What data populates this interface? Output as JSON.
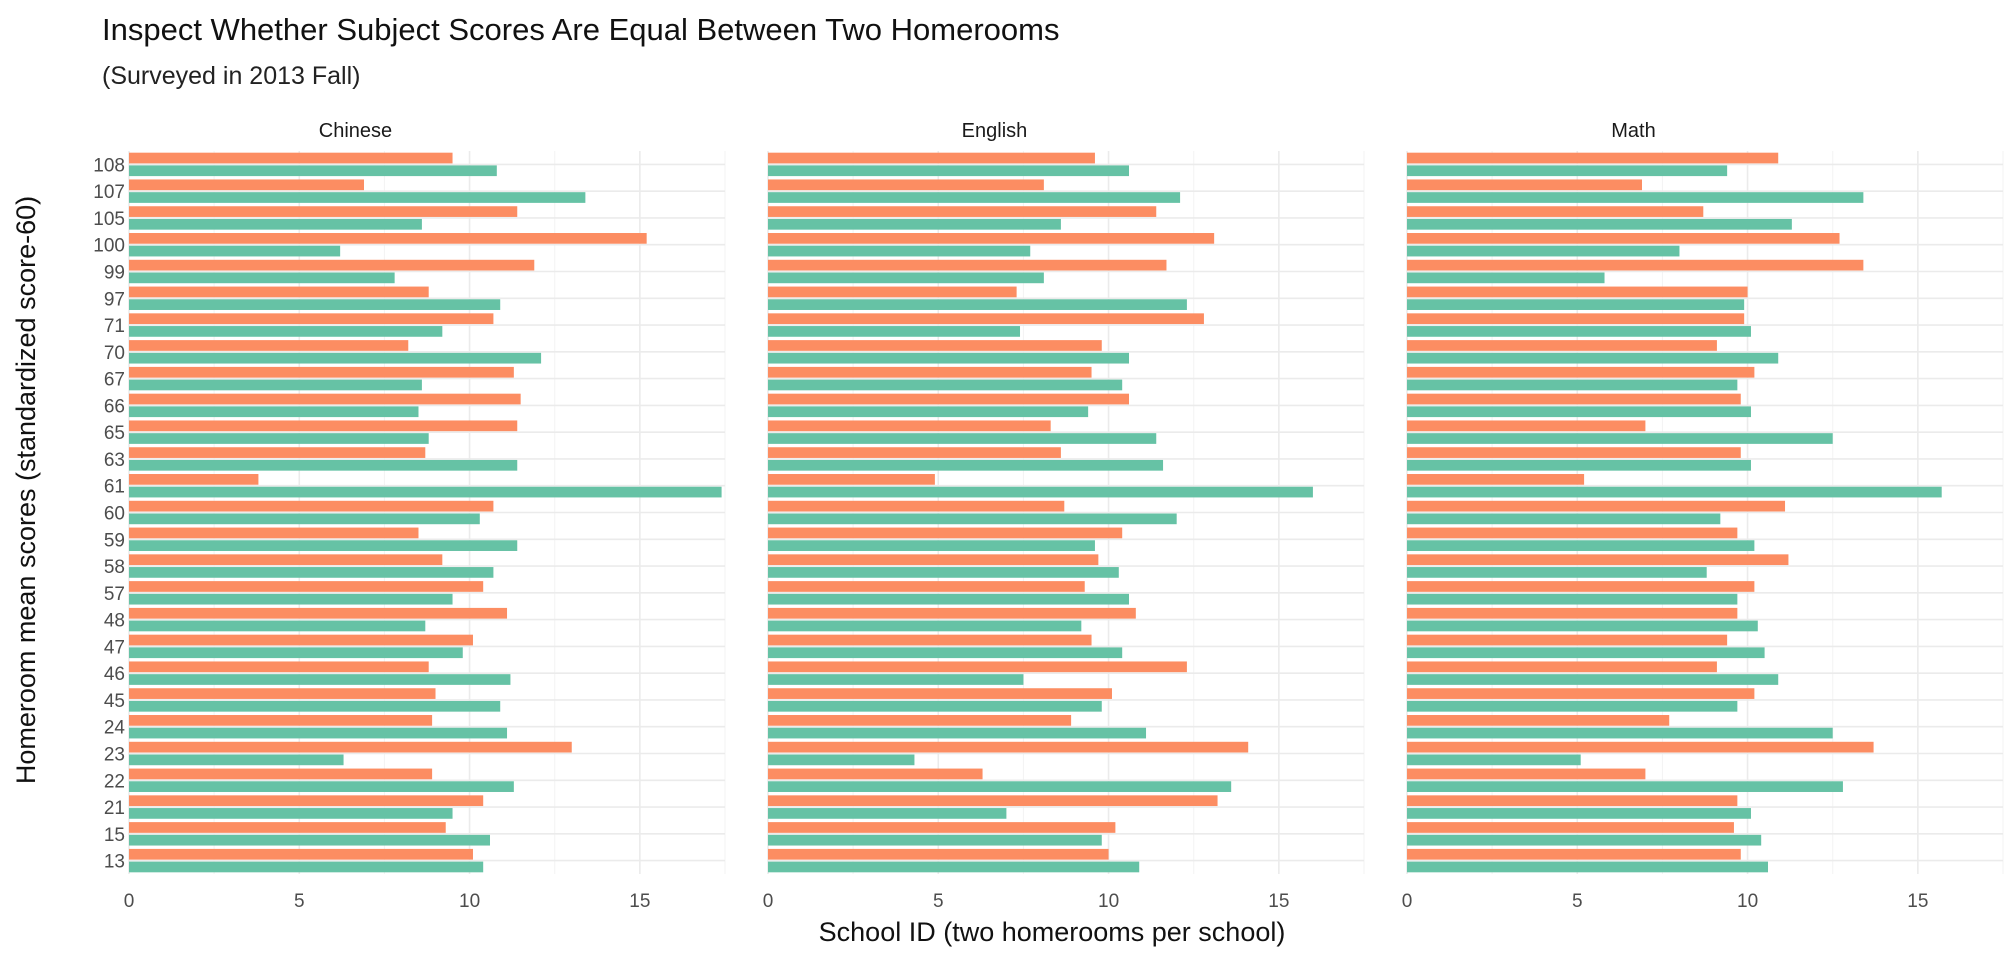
{
  "chart_data": {
    "type": "bar",
    "orientation": "horizontal",
    "title": "Inspect Whether Subject Scores Are Equal Between Two Homerooms",
    "subtitle": "(Surveyed in 2013 Fall)",
    "xlabel": "School ID (two homerooms per school)",
    "ylabel": "Homeroom mean scores (standardized score-60)",
    "xlim": [
      0,
      17.5
    ],
    "xticks": [
      "0",
      "5",
      "10",
      "15"
    ],
    "xtick_values": [
      0,
      5,
      10,
      15
    ],
    "grid": true,
    "legend": "none",
    "colors": {
      "homeroom_a": "#fc8d62",
      "homeroom_b": "#66c2a5"
    },
    "categories": [
      "108",
      "107",
      "105",
      "100",
      "99",
      "97",
      "71",
      "70",
      "67",
      "66",
      "65",
      "63",
      "61",
      "60",
      "59",
      "58",
      "57",
      "48",
      "47",
      "46",
      "45",
      "24",
      "23",
      "22",
      "21",
      "15",
      "13"
    ],
    "facets": [
      {
        "label": "Chinese",
        "series": [
          {
            "color": "#fc8d62",
            "values": [
              9.5,
              6.9,
              11.4,
              15.2,
              11.9,
              8.8,
              10.7,
              8.2,
              11.3,
              11.5,
              11.4,
              8.7,
              3.8,
              10.7,
              8.5,
              9.2,
              10.4,
              11.1,
              10.1,
              8.8,
              9.0,
              8.9,
              13.0,
              8.9,
              10.4,
              9.3,
              10.1
            ]
          },
          {
            "color": "#66c2a5",
            "values": [
              10.8,
              13.4,
              8.6,
              6.2,
              7.8,
              10.9,
              9.2,
              12.1,
              8.6,
              8.5,
              8.8,
              11.4,
              17.4,
              10.3,
              11.4,
              10.7,
              9.5,
              8.7,
              9.8,
              11.2,
              10.9,
              11.1,
              6.3,
              11.3,
              9.5,
              10.6,
              10.4
            ]
          }
        ]
      },
      {
        "label": "English",
        "series": [
          {
            "color": "#fc8d62",
            "values": [
              9.6,
              8.1,
              11.4,
              13.1,
              11.7,
              7.3,
              12.8,
              9.8,
              9.5,
              10.6,
              8.3,
              8.6,
              4.9,
              8.7,
              10.4,
              9.7,
              9.3,
              10.8,
              9.5,
              12.3,
              10.1,
              8.9,
              14.1,
              6.3,
              13.2,
              10.2,
              10.0
            ]
          },
          {
            "color": "#66c2a5",
            "values": [
              10.6,
              12.1,
              8.6,
              7.7,
              8.1,
              12.3,
              7.4,
              10.6,
              10.4,
              9.4,
              11.4,
              11.6,
              16.0,
              12.0,
              9.6,
              10.3,
              10.6,
              9.2,
              10.4,
              7.5,
              9.8,
              11.1,
              4.3,
              13.6,
              7.0,
              9.8,
              10.9
            ]
          }
        ]
      },
      {
        "label": "Math",
        "series": [
          {
            "color": "#fc8d62",
            "values": [
              10.9,
              6.9,
              8.7,
              12.7,
              13.4,
              10.0,
              9.9,
              9.1,
              10.2,
              9.8,
              7.0,
              9.8,
              5.2,
              11.1,
              9.7,
              11.2,
              10.2,
              9.7,
              9.4,
              9.1,
              10.2,
              7.7,
              13.7,
              7.0,
              9.7,
              9.6,
              9.8
            ]
          },
          {
            "color": "#66c2a5",
            "values": [
              9.4,
              13.4,
              11.3,
              8.0,
              5.8,
              9.9,
              10.1,
              10.9,
              9.7,
              10.1,
              12.5,
              10.1,
              15.7,
              9.2,
              10.2,
              8.8,
              9.7,
              10.3,
              10.5,
              10.9,
              9.7,
              12.5,
              5.1,
              12.8,
              10.1,
              10.4,
              10.6
            ]
          }
        ]
      }
    ]
  }
}
